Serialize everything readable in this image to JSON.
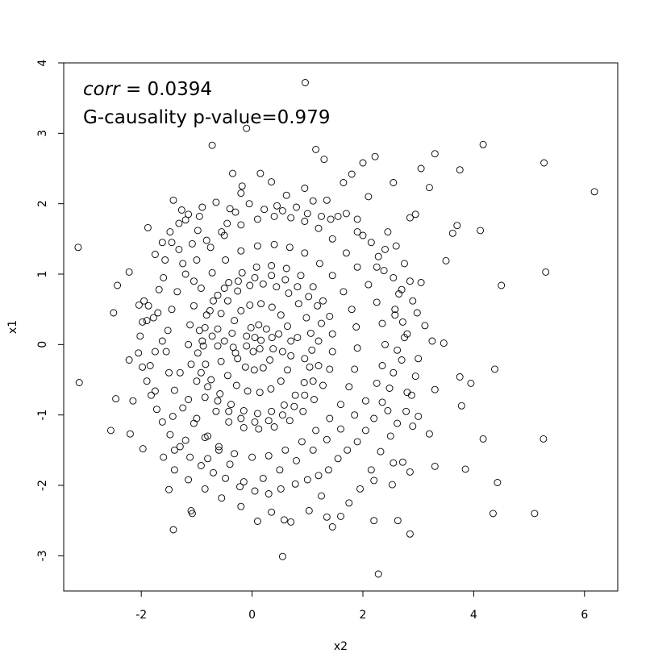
{
  "chart_data": {
    "type": "scatter",
    "xlabel": "x2",
    "ylabel": "x1",
    "xlim": [
      -3.4,
      6.6
    ],
    "ylim": [
      -3.5,
      4.0
    ],
    "x_ticks": [
      -2,
      0,
      2,
      4,
      6
    ],
    "x_tick_labels": [
      "-2",
      "0",
      "2",
      "4",
      "6"
    ],
    "y_ticks": [
      -3,
      -2,
      -1,
      0,
      1,
      2,
      3,
      4
    ],
    "y_tick_labels": [
      "-3",
      "-2",
      "-1",
      "0",
      "1",
      "2",
      "3",
      "4"
    ],
    "annotations": {
      "corr_name": "corr",
      "corr_rest": " = 0.0394",
      "gcaus": "G-causality p-value=0.979"
    },
    "marker": "open-circle",
    "marker_color": "#000000",
    "grid": false,
    "points": [
      [
        -3.14,
        1.38
      ],
      [
        -3.12,
        -0.54
      ],
      [
        -2.5,
        0.45
      ],
      [
        -2.43,
        0.84
      ],
      [
        -2.46,
        -0.77
      ],
      [
        -2.55,
        -1.22
      ],
      [
        -2.22,
        1.03
      ],
      [
        -2.22,
        -0.22
      ],
      [
        -2.15,
        -0.8
      ],
      [
        -2.2,
        -1.27
      ],
      [
        -1.97,
        -1.48
      ],
      [
        -2.04,
        0.56
      ],
      [
        -1.88,
        1.66
      ],
      [
        -1.9,
        0.34
      ],
      [
        -1.84,
        -0.3
      ],
      [
        -1.75,
        1.28
      ],
      [
        -1.75,
        -0.66
      ],
      [
        -1.5,
        -2.06
      ],
      [
        -1.42,
        2.05
      ],
      [
        -1.45,
        1.45
      ],
      [
        -1.43,
        -1.02
      ],
      [
        -1.4,
        -1.5
      ],
      [
        -1.27,
        1.91
      ],
      [
        -1.2,
        -1.36
      ],
      [
        -1.1,
        -2.36
      ],
      [
        -1.42,
        -2.63
      ],
      [
        -1.08,
        -2.4
      ],
      [
        -1.05,
        0.9
      ],
      [
        -0.9,
        1.95
      ],
      [
        -0.8,
        -1.62
      ],
      [
        -0.72,
        2.83
      ],
      [
        -0.35,
        2.43
      ],
      [
        0.15,
        2.43
      ],
      [
        -0.1,
        3.07
      ],
      [
        0.96,
        3.72
      ],
      [
        1.15,
        2.77
      ],
      [
        1.3,
        2.63
      ],
      [
        2.22,
        2.67
      ],
      [
        3.3,
        2.71
      ],
      [
        4.17,
        2.84
      ],
      [
        5.27,
        2.58
      ],
      [
        6.18,
        2.17
      ],
      [
        3.75,
        2.48
      ],
      [
        3.05,
        2.5
      ],
      [
        3.2,
        2.23
      ],
      [
        2.55,
        2.3
      ],
      [
        4.12,
        1.62
      ],
      [
        3.7,
        1.69
      ],
      [
        3.62,
        1.58
      ],
      [
        2.85,
        1.8
      ],
      [
        2.95,
        1.85
      ],
      [
        3.5,
        1.19
      ],
      [
        3.05,
        0.88
      ],
      [
        4.5,
        0.84
      ],
      [
        5.3,
        1.03
      ],
      [
        3.46,
        0.02
      ],
      [
        3.25,
        0.05
      ],
      [
        3.75,
        -0.46
      ],
      [
        3.95,
        -0.55
      ],
      [
        4.38,
        -0.35
      ],
      [
        3.3,
        -0.64
      ],
      [
        3.78,
        -0.87
      ],
      [
        3.2,
        -1.27
      ],
      [
        4.17,
        -1.34
      ],
      [
        5.26,
        -1.34
      ],
      [
        3.3,
        -1.73
      ],
      [
        3.85,
        -1.77
      ],
      [
        4.43,
        -1.96
      ],
      [
        4.35,
        -2.4
      ],
      [
        5.1,
        -2.4
      ],
      [
        2.85,
        -1.81
      ],
      [
        2.55,
        -1.68
      ],
      [
        2.72,
        -1.67
      ],
      [
        2.2,
        -1.93
      ],
      [
        2.53,
        -1.99
      ],
      [
        2.2,
        -2.5
      ],
      [
        2.63,
        -2.5
      ],
      [
        2.85,
        -2.69
      ],
      [
        2.28,
        -3.26
      ],
      [
        1.45,
        -2.59
      ],
      [
        1.35,
        -2.45
      ],
      [
        1.6,
        -2.44
      ],
      [
        1.03,
        -2.36
      ],
      [
        0.55,
        -3.01
      ],
      [
        0.58,
        -2.49
      ],
      [
        0.7,
        -2.52
      ],
      [
        0.1,
        -2.51
      ],
      [
        0.35,
        -2.38
      ],
      [
        1.25,
        -2.15
      ],
      [
        2.45,
        -0.94
      ],
      [
        2.8,
        -0.68
      ],
      [
        3.0,
        -1.02
      ],
      [
        2.9,
        -1.16
      ],
      [
        3.12,
        0.27
      ],
      [
        2.75,
        0.1
      ],
      [
        2.58,
        0.5
      ],
      [
        2.7,
        0.78
      ],
      [
        2.4,
        1.35
      ],
      [
        2.25,
        1.1
      ],
      [
        1.9,
        1.6
      ],
      [
        2.1,
        2.1
      ],
      [
        1.1,
        2.04
      ],
      [
        0.35,
        2.31
      ],
      [
        -0.2,
        2.15
      ],
      [
        0.45,
        1.97
      ],
      [
        -0.4,
        1.93
      ],
      [
        -0.95,
        1.82
      ],
      [
        -1.2,
        1.77
      ],
      [
        -1.57,
        1.2
      ],
      [
        -1.7,
        0.45
      ],
      [
        -1.62,
        0.05
      ],
      [
        -1.75,
        -0.1
      ],
      [
        -1.3,
        -0.4
      ],
      [
        -1.15,
        -0.78
      ],
      [
        -1.0,
        -1.05
      ],
      [
        -0.8,
        -1.3
      ],
      [
        -0.6,
        -1.5
      ],
      [
        -0.4,
        -1.7
      ],
      [
        -0.15,
        -1.95
      ],
      [
        0.2,
        -1.9
      ],
      [
        0.5,
        -1.78
      ],
      [
        0.8,
        -1.65
      ],
      [
        1.1,
        -1.5
      ],
      [
        1.35,
        -1.35
      ],
      [
        1.6,
        -1.2
      ],
      [
        1.85,
        -1.0
      ],
      [
        2.05,
        -0.8
      ],
      [
        2.25,
        -0.55
      ],
      [
        2.35,
        -0.3
      ],
      [
        2.4,
        0.0
      ],
      [
        2.35,
        0.3
      ],
      [
        2.25,
        0.6
      ],
      [
        2.1,
        0.85
      ],
      [
        1.9,
        1.1
      ],
      [
        1.7,
        1.3
      ],
      [
        1.45,
        1.5
      ],
      [
        1.2,
        1.65
      ],
      [
        0.95,
        1.75
      ],
      [
        0.7,
        1.8
      ],
      [
        0.4,
        1.82
      ],
      [
        0.1,
        1.78
      ],
      [
        -0.2,
        1.7
      ],
      [
        -0.5,
        1.55
      ],
      [
        -0.75,
        1.38
      ],
      [
        -1.0,
        1.2
      ],
      [
        -1.2,
        1.0
      ],
      [
        -1.35,
        0.75
      ],
      [
        -1.45,
        0.5
      ],
      [
        -1.52,
        0.2
      ],
      [
        -1.55,
        -0.1
      ],
      [
        -1.5,
        -0.4
      ],
      [
        -1.4,
        -0.65
      ],
      [
        -1.25,
        -0.9
      ],
      [
        -1.05,
        -1.12
      ],
      [
        -0.85,
        -1.32
      ],
      [
        -0.6,
        -1.45
      ],
      [
        -0.32,
        -1.55
      ],
      [
        0.0,
        -1.6
      ],
      [
        0.3,
        -1.58
      ],
      [
        0.6,
        -1.5
      ],
      [
        0.9,
        -1.38
      ],
      [
        1.15,
        -1.22
      ],
      [
        1.4,
        -1.05
      ],
      [
        1.6,
        -0.85
      ],
      [
        1.75,
        -0.6
      ],
      [
        1.85,
        -0.35
      ],
      [
        1.9,
        -0.05
      ],
      [
        1.88,
        0.25
      ],
      [
        1.8,
        0.5
      ],
      [
        1.65,
        0.75
      ],
      [
        1.45,
        0.98
      ],
      [
        1.22,
        1.15
      ],
      [
        0.95,
        1.3
      ],
      [
        0.68,
        1.38
      ],
      [
        0.4,
        1.42
      ],
      [
        0.1,
        1.4
      ],
      [
        -0.2,
        1.33
      ],
      [
        -0.48,
        1.2
      ],
      [
        -0.72,
        1.02
      ],
      [
        -0.92,
        0.8
      ],
      [
        -1.05,
        0.55
      ],
      [
        -1.12,
        0.28
      ],
      [
        -1.15,
        0.0
      ],
      [
        -1.1,
        -0.28
      ],
      [
        -1.0,
        -0.52
      ],
      [
        -0.85,
        -0.75
      ],
      [
        -0.65,
        -0.95
      ],
      [
        -0.42,
        -1.1
      ],
      [
        -0.15,
        -1.18
      ],
      [
        0.12,
        -1.2
      ],
      [
        0.4,
        -1.17
      ],
      [
        0.68,
        -1.08
      ],
      [
        0.92,
        -0.95
      ],
      [
        1.12,
        -0.78
      ],
      [
        1.28,
        -0.58
      ],
      [
        1.4,
        -0.35
      ],
      [
        1.45,
        -0.1
      ],
      [
        1.45,
        0.15
      ],
      [
        1.4,
        0.4
      ],
      [
        1.28,
        0.62
      ],
      [
        1.1,
        0.82
      ],
      [
        0.88,
        0.98
      ],
      [
        0.62,
        1.08
      ],
      [
        0.35,
        1.12
      ],
      [
        0.08,
        1.1
      ],
      [
        -0.18,
        1.02
      ],
      [
        -0.42,
        0.88
      ],
      [
        -0.62,
        0.7
      ],
      [
        -0.76,
        0.48
      ],
      [
        -0.85,
        0.24
      ],
      [
        -0.88,
        -0.02
      ],
      [
        -0.84,
        -0.28
      ],
      [
        -0.74,
        -0.5
      ],
      [
        -0.58,
        -0.7
      ],
      [
        -0.38,
        -0.85
      ],
      [
        -0.15,
        -0.94
      ],
      [
        0.1,
        -0.98
      ],
      [
        0.35,
        -0.95
      ],
      [
        0.58,
        -0.86
      ],
      [
        0.78,
        -0.72
      ],
      [
        0.94,
        -0.54
      ],
      [
        1.04,
        -0.32
      ],
      [
        1.08,
        -0.08
      ],
      [
        1.06,
        0.16
      ],
      [
        0.98,
        0.38
      ],
      [
        0.84,
        0.58
      ],
      [
        0.66,
        0.73
      ],
      [
        0.44,
        0.82
      ],
      [
        0.2,
        0.86
      ],
      [
        -0.04,
        0.84
      ],
      [
        -0.26,
        0.76
      ],
      [
        -0.44,
        0.62
      ],
      [
        -0.56,
        0.44
      ],
      [
        -0.62,
        0.22
      ],
      [
        -0.62,
        -0.02
      ],
      [
        -0.56,
        -0.24
      ],
      [
        -0.44,
        -0.44
      ],
      [
        -0.28,
        -0.58
      ],
      [
        -0.08,
        -0.66
      ],
      [
        0.14,
        -0.68
      ],
      [
        0.34,
        -0.63
      ],
      [
        0.52,
        -0.52
      ],
      [
        0.64,
        -0.36
      ],
      [
        0.7,
        -0.16
      ],
      [
        0.7,
        0.05
      ],
      [
        0.64,
        0.26
      ],
      [
        0.52,
        0.42
      ],
      [
        0.36,
        0.53
      ],
      [
        0.16,
        0.58
      ],
      [
        -0.04,
        0.56
      ],
      [
        -0.2,
        0.48
      ],
      [
        -0.32,
        0.34
      ],
      [
        -0.36,
        0.16
      ],
      [
        -0.34,
        -0.04
      ],
      [
        -0.26,
        -0.2
      ],
      [
        -0.12,
        -0.32
      ],
      [
        0.04,
        -0.36
      ],
      [
        0.2,
        -0.33
      ],
      [
        0.32,
        -0.22
      ],
      [
        0.38,
        -0.06
      ],
      [
        0.36,
        0.1
      ],
      [
        0.26,
        0.22
      ],
      [
        0.12,
        0.28
      ],
      [
        -0.02,
        0.24
      ],
      [
        -0.1,
        0.12
      ],
      [
        -0.1,
        -0.02
      ],
      [
        0.02,
        -0.1
      ],
      [
        0.14,
        -0.06
      ],
      [
        0.16,
        0.06
      ],
      [
        0.05,
        0.1
      ],
      [
        -1.95,
        0.62
      ],
      [
        -1.87,
        0.55
      ],
      [
        -1.78,
        0.38
      ],
      [
        -1.68,
        0.78
      ],
      [
        -1.6,
        0.95
      ],
      [
        -1.32,
        1.35
      ],
      [
        -1.25,
        1.15
      ],
      [
        -1.08,
        1.43
      ],
      [
        -0.98,
        1.62
      ],
      [
        -0.82,
        1.48
      ],
      [
        -0.55,
        1.6
      ],
      [
        -0.45,
        1.72
      ],
      [
        -0.3,
        1.88
      ],
      [
        -0.05,
        2.0
      ],
      [
        0.22,
        1.92
      ],
      [
        0.55,
        1.9
      ],
      [
        0.8,
        1.95
      ],
      [
        1.0,
        1.86
      ],
      [
        1.25,
        1.82
      ],
      [
        1.42,
        1.78
      ],
      [
        1.55,
        1.82
      ],
      [
        1.7,
        1.86
      ],
      [
        1.9,
        1.78
      ],
      [
        2.0,
        1.55
      ],
      [
        2.15,
        1.45
      ],
      [
        2.28,
        1.25
      ],
      [
        2.38,
        1.05
      ],
      [
        2.55,
        0.95
      ],
      [
        2.65,
        0.72
      ],
      [
        2.58,
        0.42
      ],
      [
        2.72,
        0.32
      ],
      [
        2.8,
        0.15
      ],
      [
        2.62,
        -0.08
      ],
      [
        2.7,
        -0.22
      ],
      [
        2.55,
        -0.4
      ],
      [
        2.48,
        -0.62
      ],
      [
        2.35,
        -0.82
      ],
      [
        2.2,
        -1.05
      ],
      [
        2.05,
        -1.22
      ],
      [
        1.9,
        -1.38
      ],
      [
        1.72,
        -1.5
      ],
      [
        1.55,
        -1.62
      ],
      [
        1.38,
        -1.78
      ],
      [
        1.2,
        -1.86
      ],
      [
        1.0,
        -1.92
      ],
      [
        0.78,
        -1.98
      ],
      [
        0.52,
        -2.05
      ],
      [
        0.3,
        -2.12
      ],
      [
        0.05,
        -2.08
      ],
      [
        -0.22,
        -2.02
      ],
      [
        -0.48,
        -1.9
      ],
      [
        -0.7,
        -1.82
      ],
      [
        -0.92,
        -1.72
      ],
      [
        -1.12,
        -1.6
      ],
      [
        -1.3,
        -1.45
      ],
      [
        -1.48,
        -1.28
      ],
      [
        -1.62,
        -1.1
      ],
      [
        -1.72,
        -0.92
      ],
      [
        -1.82,
        -0.72
      ],
      [
        -1.9,
        -0.52
      ],
      [
        -1.98,
        -0.32
      ],
      [
        -2.05,
        -0.12
      ],
      [
        -2.02,
        0.12
      ],
      [
        -1.98,
        0.32
      ],
      [
        -1.62,
        1.45
      ],
      [
        -1.48,
        1.6
      ],
      [
        -1.32,
        1.72
      ],
      [
        -1.15,
        1.85
      ],
      [
        -0.65,
        2.02
      ],
      [
        -0.18,
        2.25
      ],
      [
        0.62,
        2.12
      ],
      [
        0.95,
        2.22
      ],
      [
        1.35,
        2.05
      ],
      [
        1.65,
        2.3
      ],
      [
        1.8,
        2.42
      ],
      [
        2.0,
        2.58
      ],
      [
        -0.2,
        -2.3
      ],
      [
        -0.55,
        -2.18
      ],
      [
        -0.85,
        -2.05
      ],
      [
        -1.15,
        -1.92
      ],
      [
        -1.4,
        -1.78
      ],
      [
        -1.6,
        -1.6
      ],
      [
        1.75,
        -2.25
      ],
      [
        1.95,
        -2.05
      ],
      [
        2.15,
        -1.78
      ],
      [
        2.32,
        -1.52
      ],
      [
        2.5,
        -1.3
      ],
      [
        2.62,
        -1.12
      ],
      [
        2.78,
        -0.95
      ],
      [
        2.88,
        -0.72
      ],
      [
        2.95,
        -0.45
      ],
      [
        3.0,
        -0.2
      ],
      [
        2.98,
        0.45
      ],
      [
        2.9,
        0.62
      ],
      [
        2.85,
        0.9
      ],
      [
        2.75,
        1.15
      ],
      [
        2.6,
        1.4
      ],
      [
        2.45,
        1.6
      ],
      [
        -0.9,
        0.05
      ],
      [
        -0.72,
        0.12
      ],
      [
        -0.5,
        0.05
      ],
      [
        -0.3,
        -0.12
      ],
      [
        0.48,
        0.15
      ],
      [
        0.55,
        -0.1
      ],
      [
        0.82,
        0.1
      ],
      [
        0.95,
        -0.2
      ],
      [
        1.2,
        0.05
      ],
      [
        1.25,
        0.3
      ],
      [
        1.18,
        0.55
      ],
      [
        1.02,
        0.68
      ],
      [
        0.82,
        0.82
      ],
      [
        0.6,
        0.92
      ],
      [
        0.35,
        0.98
      ],
      [
        0.05,
        0.95
      ],
      [
        -0.25,
        0.9
      ],
      [
        -0.5,
        0.8
      ],
      [
        -0.7,
        0.62
      ],
      [
        -0.82,
        0.42
      ],
      [
        -0.95,
        0.2
      ],
      [
        -0.98,
        -0.12
      ],
      [
        -0.92,
        -0.4
      ],
      [
        -0.8,
        -0.6
      ],
      [
        -0.62,
        -0.8
      ],
      [
        -0.42,
        -0.95
      ],
      [
        -0.2,
        -1.05
      ],
      [
        0.05,
        -1.1
      ],
      [
        0.3,
        -1.08
      ],
      [
        0.55,
        -1.0
      ],
      [
        0.76,
        -0.88
      ],
      [
        0.95,
        -0.72
      ],
      [
        1.1,
        -0.52
      ],
      [
        1.2,
        -0.3
      ]
    ]
  }
}
